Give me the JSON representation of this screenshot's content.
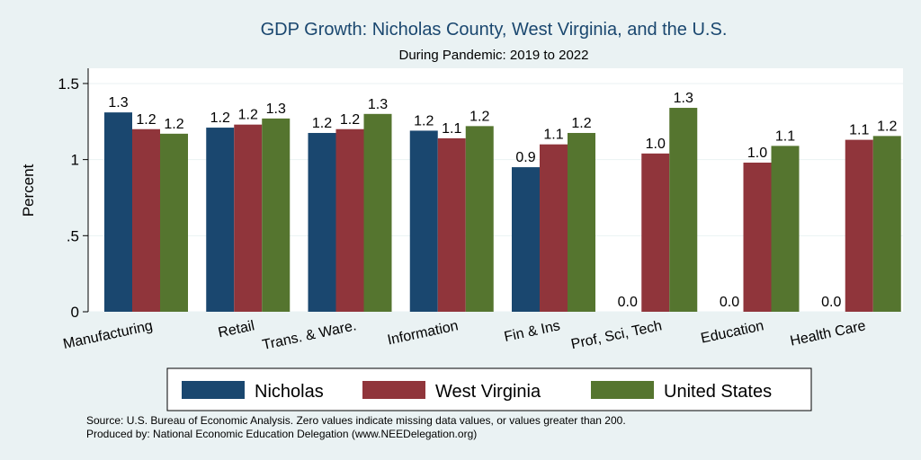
{
  "chart_data": {
    "type": "bar",
    "title": "GDP Growth: Nicholas County, West Virginia, and the U.S.",
    "subtitle": "During Pandemic: 2019 to 2022",
    "ylabel": "Percent",
    "ylim": [
      0,
      1.6
    ],
    "yticks": [
      0,
      0.5,
      1,
      1.5
    ],
    "ytick_labels": [
      "0",
      ".5",
      "1",
      "1.5"
    ],
    "grid": true,
    "categories": [
      "Manufacturing",
      "Retail",
      "Trans. & Ware.",
      "Information",
      "Fin & Ins",
      "Prof, Sci, Tech",
      "Education",
      "Health Care"
    ],
    "series": [
      {
        "name": "Nicholas",
        "color": "#1a476f",
        "values": [
          1.31,
          1.21,
          1.175,
          1.19,
          0.95,
          0,
          0,
          0
        ],
        "labels": [
          "1.3",
          "1.2",
          "1.2",
          "1.2",
          "0.9",
          "0.0",
          "0.0",
          "0.0"
        ]
      },
      {
        "name": "West Virginia",
        "color": "#90353b",
        "values": [
          1.2,
          1.23,
          1.2,
          1.14,
          1.1,
          1.04,
          0.98,
          1.13
        ],
        "labels": [
          "1.2",
          "1.2",
          "1.2",
          "1.1",
          "1.1",
          "1.0",
          "1.0",
          "1.1"
        ]
      },
      {
        "name": "United States",
        "color": "#55752f",
        "values": [
          1.17,
          1.27,
          1.3,
          1.22,
          1.175,
          1.34,
          1.09,
          1.155
        ],
        "labels": [
          "1.2",
          "1.3",
          "1.3",
          "1.2",
          "1.2",
          "1.3",
          "1.1",
          "1.2"
        ]
      }
    ],
    "legend_position": "bottom"
  },
  "footer": {
    "source": "Source: U.S. Bureau of Economic Analysis. Zero values indicate missing data values, or values greater than 200.",
    "produced_by": "Produced by: National Economic Education Delegation (www.NEEDelegation.org)"
  }
}
